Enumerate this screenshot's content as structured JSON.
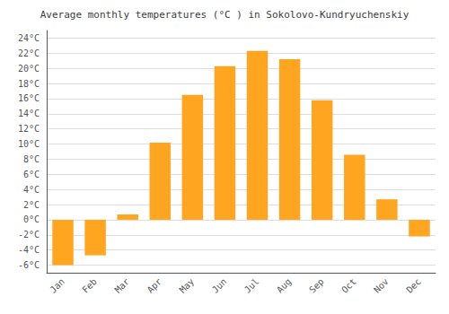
{
  "chart_data": {
    "type": "bar",
    "title": "Average monthly temperatures (°C ) in Sokolovo-Kundryuchenskiy",
    "categories": [
      "Jan",
      "Feb",
      "Mar",
      "Apr",
      "May",
      "Jun",
      "Jul",
      "Aug",
      "Sep",
      "Oct",
      "Nov",
      "Dec"
    ],
    "values": [
      -6,
      -4.7,
      0.7,
      10.2,
      16.5,
      20.3,
      22.3,
      21.2,
      15.8,
      8.6,
      2.7,
      -2.2
    ],
    "color": "#FFA520",
    "ylim": [
      -7,
      25
    ],
    "yticks": [
      {
        "value": -6,
        "label": "-6°C"
      },
      {
        "value": -4,
        "label": "-4°C"
      },
      {
        "value": -2,
        "label": "-2°C"
      },
      {
        "value": 0,
        "label": "0°C"
      },
      {
        "value": 2,
        "label": "2°C"
      },
      {
        "value": 4,
        "label": "4°C"
      },
      {
        "value": 6,
        "label": "6°C"
      },
      {
        "value": 8,
        "label": "8°C"
      },
      {
        "value": 10,
        "label": "10°C"
      },
      {
        "value": 12,
        "label": "12°C"
      },
      {
        "value": 14,
        "label": "14°C"
      },
      {
        "value": 16,
        "label": "16°C"
      },
      {
        "value": 18,
        "label": "18°C"
      },
      {
        "value": 20,
        "label": "20°C"
      },
      {
        "value": 22,
        "label": "22°C"
      },
      {
        "value": 24,
        "label": "24°C"
      }
    ],
    "grid": true
  }
}
